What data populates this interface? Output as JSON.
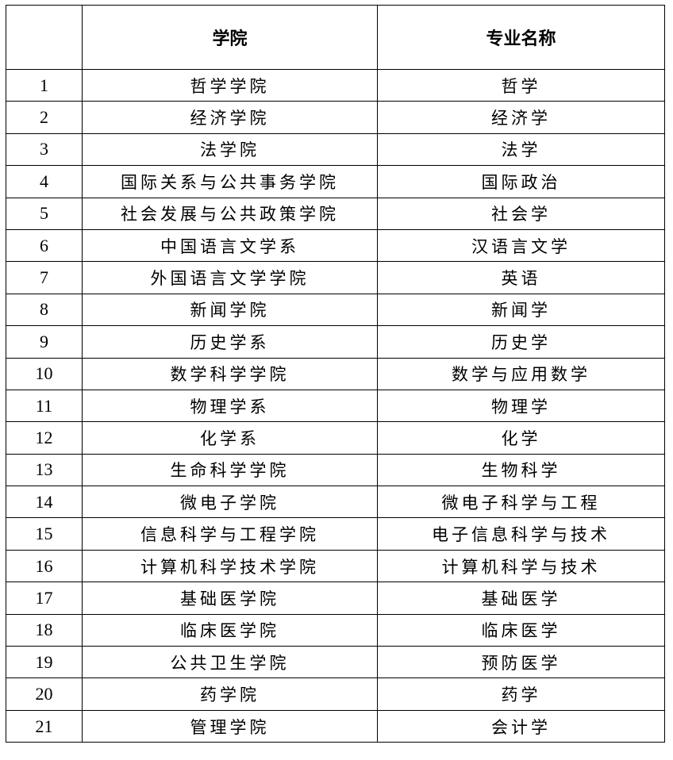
{
  "table": {
    "headers": [
      "",
      "学院",
      "专业名称"
    ],
    "rows": [
      [
        "1",
        "哲学学院",
        "哲学"
      ],
      [
        "2",
        "经济学院",
        "经济学"
      ],
      [
        "3",
        "法学院",
        "法学"
      ],
      [
        "4",
        "国际关系与公共事务学院",
        "国际政治"
      ],
      [
        "5",
        "社会发展与公共政策学院",
        "社会学"
      ],
      [
        "6",
        "中国语言文学系",
        "汉语言文学"
      ],
      [
        "7",
        "外国语言文学学院",
        "英语"
      ],
      [
        "8",
        "新闻学院",
        "新闻学"
      ],
      [
        "9",
        "历史学系",
        "历史学"
      ],
      [
        "10",
        "数学科学学院",
        "数学与应用数学"
      ],
      [
        "11",
        "物理学系",
        "物理学"
      ],
      [
        "12",
        "化学系",
        "化学"
      ],
      [
        "13",
        "生命科学学院",
        "生物科学"
      ],
      [
        "14",
        "微电子学院",
        "微电子科学与工程"
      ],
      [
        "15",
        "信息科学与工程学院",
        "电子信息科学与技术"
      ],
      [
        "16",
        "计算机科学技术学院",
        "计算机科学与技术"
      ],
      [
        "17",
        "基础医学院",
        "基础医学"
      ],
      [
        "18",
        "临床医学院",
        "临床医学"
      ],
      [
        "19",
        "公共卫生学院",
        "预防医学"
      ],
      [
        "20",
        "药学院",
        "药学"
      ],
      [
        "21",
        "管理学院",
        "会计学"
      ]
    ]
  }
}
